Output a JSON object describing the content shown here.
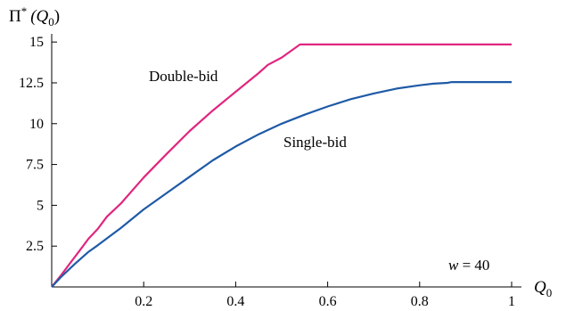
{
  "chart_data": {
    "type": "line",
    "title": "",
    "xlabel": "Q",
    "xlabel_sub": "0",
    "ylabel": "Π",
    "ylabel_sup": "*",
    "ylabel_arg": "(Q",
    "ylabel_arg_sub": "0",
    "ylabel_close": ")",
    "xlim": [
      0,
      1
    ],
    "ylim": [
      0,
      15.5
    ],
    "x_ticks": [
      0.2,
      0.4,
      0.6,
      0.8,
      1.0
    ],
    "x_tick_labels": [
      "0.2",
      "0.4",
      "0.6",
      "0.8",
      "1"
    ],
    "y_ticks": [
      2.5,
      5,
      7.5,
      10,
      12.5,
      15
    ],
    "y_tick_labels": [
      "2.5",
      "5",
      "7.5",
      "10",
      "12.5",
      "15"
    ],
    "grid": false,
    "legend": "none",
    "annotations": [
      {
        "id": "double-bid-label",
        "text": "Double-bid"
      },
      {
        "id": "single-bid-label",
        "text": "Single-bid"
      }
    ],
    "parameter_text": {
      "var": "w",
      "eq": " = 40"
    },
    "series": [
      {
        "name": "Double-bid",
        "color": "#e0267f",
        "x": [
          0,
          0.02,
          0.04,
          0.06,
          0.08,
          0.1,
          0.12,
          0.15,
          0.2,
          0.25,
          0.3,
          0.35,
          0.4,
          0.45,
          0.47,
          0.5,
          0.54,
          0.6,
          0.7,
          0.8,
          0.9,
          1.0
        ],
        "y": [
          0,
          0.7,
          1.45,
          2.2,
          2.95,
          3.55,
          4.3,
          5.1,
          6.7,
          8.15,
          9.55,
          10.8,
          11.95,
          13.1,
          13.6,
          14.05,
          14.85,
          14.85,
          14.85,
          14.85,
          14.85,
          14.85
        ]
      },
      {
        "name": "Single-bid",
        "color": "#1f5aa6",
        "x": [
          0,
          0.02,
          0.05,
          0.08,
          0.1,
          0.15,
          0.2,
          0.25,
          0.3,
          0.35,
          0.4,
          0.45,
          0.5,
          0.55,
          0.6,
          0.65,
          0.7,
          0.75,
          0.8,
          0.83,
          0.86,
          0.87,
          0.9,
          0.95,
          1.0
        ],
        "y": [
          0,
          0.6,
          1.4,
          2.15,
          2.55,
          3.6,
          4.75,
          5.75,
          6.75,
          7.75,
          8.6,
          9.35,
          10.0,
          10.55,
          11.05,
          11.5,
          11.85,
          12.15,
          12.35,
          12.45,
          12.5,
          12.55,
          12.55,
          12.55,
          12.55
        ]
      }
    ]
  }
}
